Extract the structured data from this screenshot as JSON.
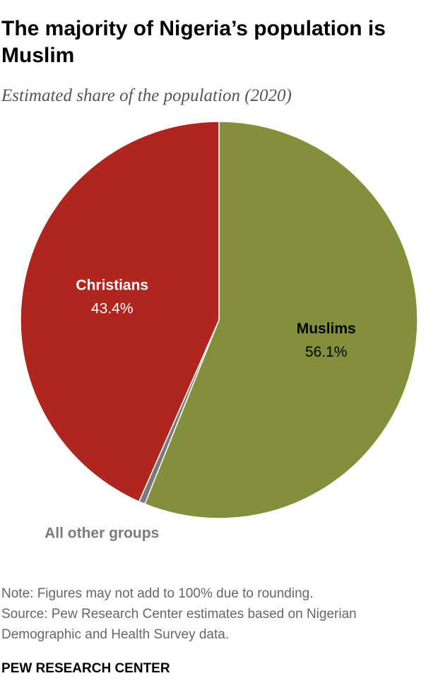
{
  "chart_data": {
    "type": "pie",
    "title": "The majority of Nigeria’s population is Muslim",
    "subtitle": "Estimated share of the population (2020)",
    "categories": [
      "Muslims",
      "All other groups",
      "Christians"
    ],
    "values": [
      56.1,
      0.5,
      43.4
    ],
    "value_labels": [
      "56.1%",
      null,
      "43.4%"
    ],
    "colors": [
      "#838f3b",
      "#7a7a7a",
      "#b0261f"
    ],
    "note": "Note: Figures may not add to 100% due to rounding.",
    "source": "Source: Pew Research Center estimates based on Nigerian Demographic and Health Survey data.",
    "footer": "PEW RESEARCH CENTER"
  }
}
